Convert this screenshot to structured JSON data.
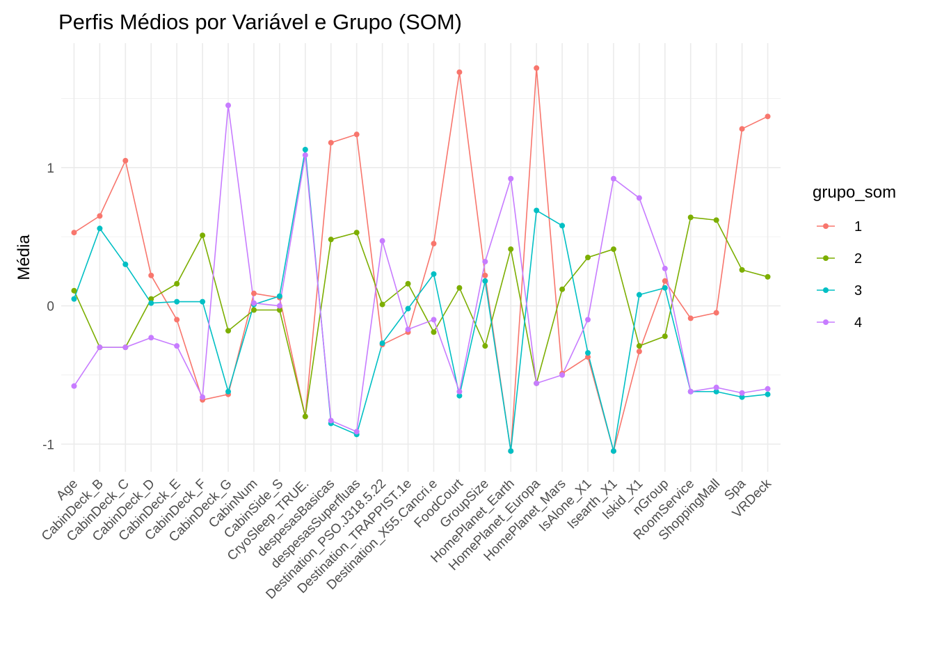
{
  "chart_data": {
    "type": "line",
    "title": "Perfis Médios por Variável e Grupo (SOM)",
    "xlabel": "",
    "ylabel": "Média",
    "ylim": [
      -1.2,
      1.9
    ],
    "yticks": [
      -1,
      0,
      1
    ],
    "grid": true,
    "legend": {
      "title": "grupo_som",
      "position": "right"
    },
    "categories": [
      "Age",
      "CabinDeck_B",
      "CabinDeck_C",
      "CabinDeck_D",
      "CabinDeck_E",
      "CabinDeck_F",
      "CabinDeck_G",
      "CabinNum",
      "CabinSide_S",
      "CryoSleep_TRUE.",
      "despesasBasicas",
      "despesasSuperfluas",
      "Destination_PSO.J318.5.22",
      "Destination_TRAPPIST.1e",
      "Destination_X55.Cancri.e",
      "FoodCourt",
      "GroupSize",
      "HomePlanet_Earth",
      "HomePlanet_Europa",
      "HomePlanet_Mars",
      "IsAlone_X1",
      "Isearth_X1",
      "Iskid_X1",
      "nGroup",
      "RoomService",
      "ShoppingMall",
      "Spa",
      "VRDeck"
    ],
    "series": [
      {
        "name": "1",
        "color": "#F8766D",
        "values": [
          0.53,
          0.65,
          1.05,
          0.22,
          -0.1,
          -0.68,
          -0.64,
          0.09,
          0.06,
          -0.8,
          1.18,
          1.24,
          -0.28,
          -0.19,
          0.45,
          1.69,
          0.22,
          -1.05,
          1.72,
          -0.49,
          -0.37,
          -1.05,
          -0.33,
          0.18,
          -0.09,
          -0.05,
          1.28,
          1.37
        ]
      },
      {
        "name": "2",
        "color": "#7CAE00",
        "values": [
          0.11,
          -0.3,
          -0.3,
          0.05,
          0.16,
          0.51,
          -0.18,
          -0.03,
          -0.03,
          -0.8,
          0.48,
          0.53,
          0.01,
          0.16,
          -0.19,
          0.13,
          -0.29,
          0.41,
          -0.56,
          0.12,
          0.35,
          0.41,
          -0.29,
          -0.22,
          0.64,
          0.62,
          0.26,
          0.21
        ]
      },
      {
        "name": "3",
        "color": "#00BFC4",
        "values": [
          0.05,
          0.56,
          0.3,
          0.02,
          0.03,
          0.03,
          -0.62,
          0.01,
          0.07,
          1.13,
          -0.85,
          -0.93,
          -0.27,
          -0.02,
          0.23,
          -0.65,
          0.18,
          -1.05,
          0.69,
          0.58,
          -0.34,
          -1.05,
          0.08,
          0.13,
          -0.62,
          -0.62,
          -0.66,
          -0.64
        ]
      },
      {
        "name": "4",
        "color": "#C77CFF",
        "values": [
          -0.58,
          -0.3,
          -0.3,
          -0.23,
          -0.29,
          -0.66,
          1.45,
          0.02,
          0.0,
          1.09,
          -0.83,
          -0.91,
          0.47,
          -0.17,
          -0.1,
          -0.62,
          0.32,
          0.92,
          -0.56,
          -0.5,
          -0.1,
          0.92,
          0.78,
          0.27,
          -0.62,
          -0.59,
          -0.63,
          -0.6
        ]
      }
    ]
  }
}
